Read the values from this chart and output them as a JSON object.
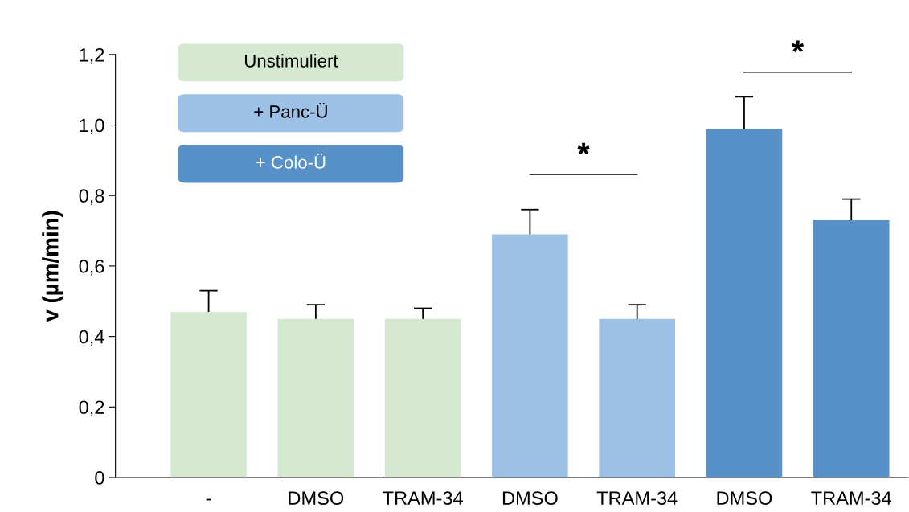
{
  "chart_data": {
    "type": "bar",
    "ylabel": "v (µm/min)",
    "categories": [
      "-",
      "DMSO",
      "TRAM-34",
      "DMSO",
      "TRAM-34",
      "DMSO",
      "TRAM-34"
    ],
    "legend": "top left",
    "grid": false,
    "ylim": [
      0,
      1.2
    ],
    "yticks": [
      {
        "value": 0,
        "label": "0"
      },
      {
        "value": 0.2,
        "label": "0,2"
      },
      {
        "value": 0.4,
        "label": "0,4"
      },
      {
        "value": 0.6,
        "label": "0,6"
      },
      {
        "value": 0.8,
        "label": "0,8"
      },
      {
        "value": 1.0,
        "label": "1,0"
      },
      {
        "value": 1.2,
        "label": "1,2"
      }
    ],
    "series": [
      {
        "name": "Unstimuliert",
        "color": "#d5e8d0",
        "values": [
          0.47,
          0.45,
          0.45,
          null,
          null,
          null,
          null
        ],
        "errors": [
          0.06,
          0.04,
          0.03,
          null,
          null,
          null,
          null
        ]
      },
      {
        "name": "+ Panc-Ü",
        "color": "#9dc0e6",
        "values": [
          null,
          null,
          null,
          0.69,
          0.45,
          null,
          null
        ],
        "errors": [
          null,
          null,
          null,
          0.07,
          0.04,
          null,
          null
        ]
      },
      {
        "name": "+ Colo-Ü",
        "color": "#5891c8",
        "values": [
          null,
          null,
          null,
          null,
          null,
          0.99,
          0.73
        ],
        "errors": [
          null,
          null,
          null,
          null,
          null,
          0.09,
          0.06
        ]
      }
    ],
    "annotations": [
      "*",
      "*"
    ]
  }
}
